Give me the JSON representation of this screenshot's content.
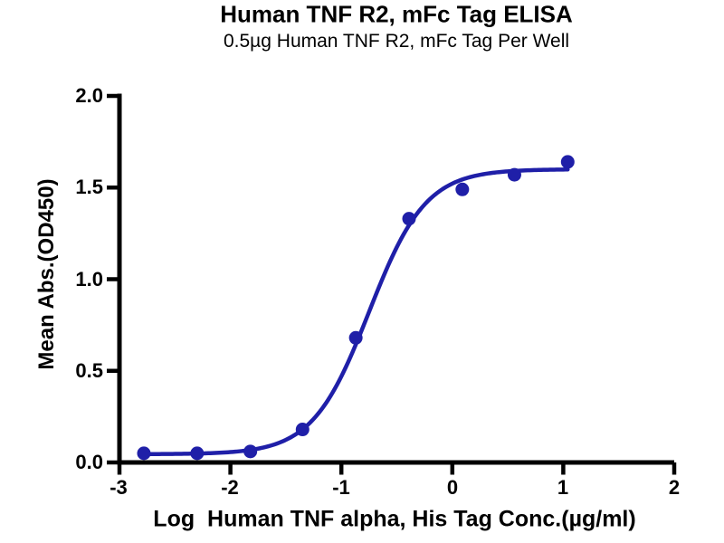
{
  "chart_data": {
    "type": "scatter",
    "title": "Human TNF R2, mFc Tag ELISA",
    "subtitle": "0.5µg Human TNF R2, mFc Tag Per Well",
    "xlabel": "Log  Human TNF alpha, His Tag Conc.(µg/ml)",
    "ylabel": "Mean Abs.(OD450)",
    "xlim": [
      -3,
      2
    ],
    "ylim": [
      0,
      2
    ],
    "x_ticks": [
      -3,
      -2,
      -1,
      0,
      1,
      2
    ],
    "y_ticks": [
      0,
      0.5,
      1,
      1.5,
      2
    ],
    "x_tick_labels": [
      "-3",
      "-2",
      "-1",
      "0",
      "1",
      "2"
    ],
    "y_tick_labels": [
      "0.0",
      "0.5",
      "1.0",
      "1.5",
      "2.0"
    ],
    "grid": false,
    "legend": "none",
    "points": {
      "x": [
        -2.78,
        -2.3,
        -1.82,
        -1.35,
        -0.87,
        -0.39,
        0.09,
        0.56,
        1.04
      ],
      "y": [
        0.05,
        0.05,
        0.06,
        0.18,
        0.68,
        1.33,
        1.49,
        1.57,
        1.64
      ]
    },
    "fit_curve": {
      "model": "4PL sigmoid",
      "bottom": 0.045,
      "top": 1.6,
      "logEC50": -0.75,
      "hillslope": 1.7,
      "x_start": -2.78,
      "x_end": 1.04
    },
    "colors": {
      "series": "#1f1fa8",
      "axis": "#000000",
      "text": "#000000",
      "background": "#ffffff"
    }
  }
}
